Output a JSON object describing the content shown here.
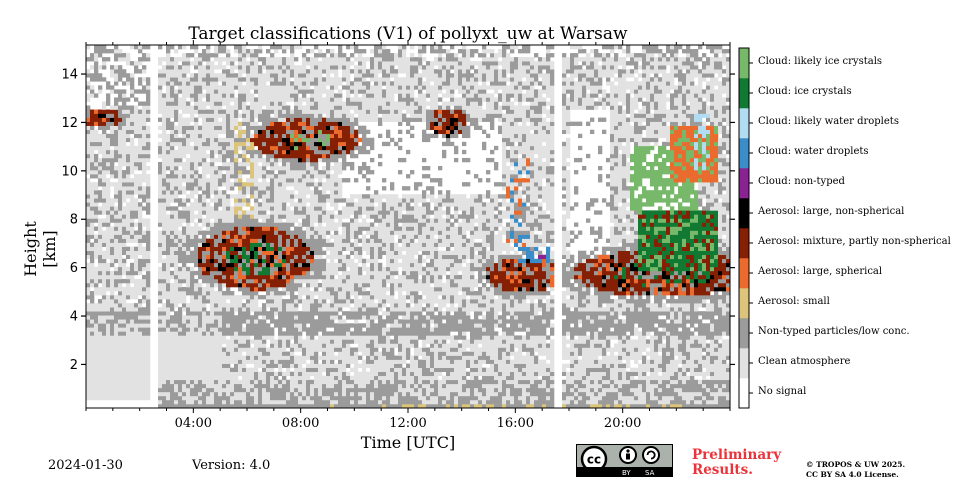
{
  "chart_data": {
    "type": "heatmap",
    "title": "Target classifications (V1) of pollyxt_uw at Warsaw",
    "xlabel": "Time [UTC]",
    "ylabel": "Height [km]",
    "x_ticks": [
      "04:00",
      "08:00",
      "12:00",
      "16:00",
      "20:00"
    ],
    "x_tick_hours": [
      4,
      8,
      12,
      16,
      20
    ],
    "xlim_hours": [
      0,
      24
    ],
    "y_ticks": [
      2,
      4,
      6,
      8,
      10,
      12,
      14
    ],
    "ylim_km": [
      0.2,
      15.2
    ],
    "colorbar": {
      "position": "right",
      "classes": [
        {
          "label": "No signal",
          "color": "#ffffff"
        },
        {
          "label": "Clean atmosphere",
          "color": "#e2e2e2"
        },
        {
          "label": "Non-typed particles/low conc.",
          "color": "#9b9b9b"
        },
        {
          "label": "Aerosol: small",
          "color": "#dcc47a"
        },
        {
          "label": "Aerosol: large, spherical",
          "color": "#ea6b2d"
        },
        {
          "label": "Aerosol: mixture, partly non-spherical",
          "color": "#852004"
        },
        {
          "label": "Aerosol: large, non-spherical",
          "color": "#000000"
        },
        {
          "label": "Cloud: non-typed",
          "color": "#892391"
        },
        {
          "label": "Cloud: water droplets",
          "color": "#3b8dc9"
        },
        {
          "label": "Cloud: likely water droplets",
          "color": "#b2dcf1"
        },
        {
          "label": "Cloud: ice crystals",
          "color": "#127933"
        },
        {
          "label": "Cloud: likely ice crystals",
          "color": "#78b86a"
        }
      ]
    }
  },
  "footer": {
    "date": "2024-01-30",
    "version": "Version: 4.0",
    "preliminary_line1": "Preliminary",
    "preliminary_line2": "Results.",
    "copyright_line1": "© TROPOS & UW 2025.",
    "copyright_line2": "CC BY SA 4.0 License.",
    "cc_badge": {
      "by": "BY",
      "sa": "SA"
    }
  }
}
